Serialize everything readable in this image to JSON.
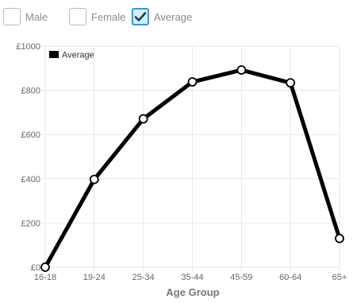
{
  "filters": [
    {
      "label": "Male",
      "checked": false
    },
    {
      "label": "Female",
      "checked": false
    },
    {
      "label": "Average",
      "checked": true
    }
  ],
  "colors": {
    "line": "#000000",
    "grid": "#e6e6e6",
    "check_border": "#3a9ac9",
    "check_fill": "#d6ecf6",
    "text": "#666666"
  },
  "chart_data": {
    "type": "line",
    "categories": [
      "16-18",
      "19-24",
      "25-34",
      "35-44",
      "45-59",
      "60-64",
      "65+"
    ],
    "series": [
      {
        "name": "Average",
        "values": [
          0,
          397,
          671,
          838,
          892,
          834,
          130
        ]
      }
    ],
    "y_ticks": [
      "£0",
      "£200",
      "£400",
      "£600",
      "£800",
      "£1000"
    ],
    "ylim": [
      0,
      1000
    ],
    "xlabel": "Age Group",
    "ylabel": "",
    "grid": true,
    "legend": "top-left"
  }
}
